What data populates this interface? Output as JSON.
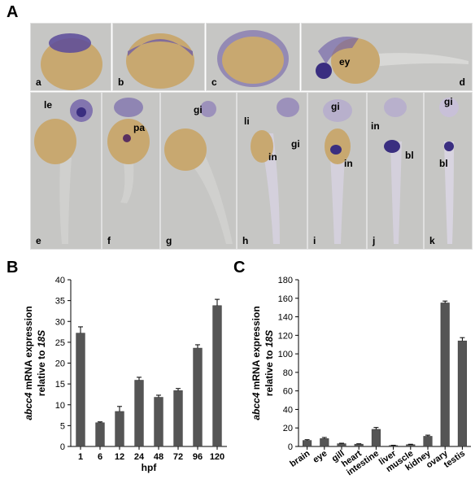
{
  "panels": {
    "A": "A",
    "B": "B",
    "C": "C"
  },
  "micrographs": [
    {
      "label": "a",
      "annotations": []
    },
    {
      "label": "b",
      "annotations": []
    },
    {
      "label": "c",
      "annotations": []
    },
    {
      "label": "d",
      "annotations": [
        "ey"
      ]
    },
    {
      "label": "e",
      "annotations": [
        "le"
      ]
    },
    {
      "label": "f",
      "annotations": [
        "pa"
      ]
    },
    {
      "label": "g",
      "annotations": [
        "gi"
      ]
    },
    {
      "label": "h",
      "annotations": [
        "li",
        "in",
        "gi"
      ]
    },
    {
      "label": "i",
      "annotations": [
        "gi",
        "in"
      ]
    },
    {
      "label": "j",
      "annotations": [
        "in",
        "bl"
      ]
    },
    {
      "label": "k",
      "annotations": [
        "gi",
        "bl"
      ]
    }
  ],
  "colors": {
    "bar": "#555555",
    "stain": "#5a4a9a",
    "yolk": "#c8a870",
    "background": "#c6c6c4"
  },
  "chart_data": [
    {
      "type": "bar",
      "panel": "B",
      "categories": [
        "1",
        "6",
        "12",
        "24",
        "48",
        "72",
        "96",
        "120"
      ],
      "values": [
        27.2,
        5.7,
        8.4,
        15.9,
        11.8,
        13.4,
        23.6,
        33.8
      ],
      "errors": [
        1.5,
        0.2,
        1.2,
        0.7,
        0.5,
        0.5,
        0.8,
        1.5
      ],
      "xlabel": "hpf",
      "ylabel_parts": [
        "abcc4",
        " mRNA expression",
        "relative to ",
        "18S"
      ],
      "ylim": [
        0,
        40
      ],
      "yticks": [
        0,
        5,
        10,
        15,
        20,
        25,
        30,
        35,
        40
      ]
    },
    {
      "type": "bar",
      "panel": "C",
      "categories": [
        "brain",
        "eye",
        "gill",
        "heart",
        "intestine",
        "liver",
        "muscle",
        "kidney",
        "ovary",
        "testis"
      ],
      "values": [
        6.5,
        8.5,
        3.0,
        2.5,
        18.5,
        1.0,
        2.0,
        11.0,
        155.0,
        114.0
      ],
      "errors": [
        0.8,
        1.2,
        0.5,
        0.4,
        2.0,
        0.3,
        0.4,
        1.2,
        2.0,
        3.5
      ],
      "xlabel": "",
      "ylabel_parts": [
        "abcc4",
        " mRNA expression",
        "relative to ",
        "18S"
      ],
      "ylim": [
        0,
        180
      ],
      "yticks": [
        0,
        20,
        40,
        60,
        80,
        100,
        120,
        140,
        160,
        180
      ]
    }
  ]
}
